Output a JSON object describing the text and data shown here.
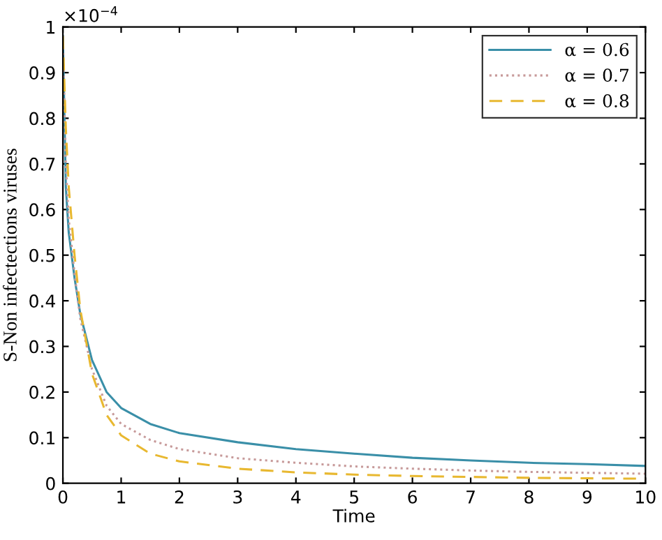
{
  "chart_data": {
    "type": "line",
    "xlabel": "Time",
    "ylabel": "S-Non infectections viruses",
    "annotations": [
      "×10$^{−4}$"
    ],
    "x": [
      0,
      0.05,
      0.1,
      0.2,
      0.3,
      0.5,
      0.75,
      1,
      1.5,
      2,
      3,
      4,
      5,
      6,
      7,
      8,
      9,
      10
    ],
    "series": [
      {
        "name": "α = 0.6",
        "color": "#3a8fa8",
        "line_style": "solid",
        "values": [
          0.98,
          0.65,
          0.55,
          0.45,
          0.37,
          0.27,
          0.2,
          0.165,
          0.13,
          0.11,
          0.09,
          0.075,
          0.065,
          0.056,
          0.05,
          0.045,
          0.042,
          0.038
        ]
      },
      {
        "name": "α = 0.7",
        "color": "#c79a9a",
        "line_style": "dotted",
        "values": [
          0.98,
          0.7,
          0.58,
          0.46,
          0.36,
          0.25,
          0.17,
          0.13,
          0.095,
          0.075,
          0.055,
          0.045,
          0.037,
          0.032,
          0.028,
          0.025,
          0.023,
          0.021
        ]
      },
      {
        "name": "α = 0.8",
        "color": "#e8b830",
        "line_style": "dashed",
        "values": [
          0.98,
          0.78,
          0.65,
          0.5,
          0.38,
          0.24,
          0.15,
          0.105,
          0.065,
          0.048,
          0.032,
          0.024,
          0.019,
          0.016,
          0.014,
          0.012,
          0.011,
          0.01
        ]
      }
    ],
    "xlim": [
      0,
      10
    ],
    "xticks": [
      0,
      1,
      2,
      3,
      4,
      5,
      6,
      7,
      8,
      9,
      10
    ],
    "ylim": [
      0,
      1
    ],
    "yticks": [
      0,
      0.1,
      0.2,
      0.3,
      0.4,
      0.5,
      0.6,
      0.7,
      0.8,
      0.9,
      1
    ],
    "grid": false,
    "legend": "top right",
    "marker": "none"
  }
}
